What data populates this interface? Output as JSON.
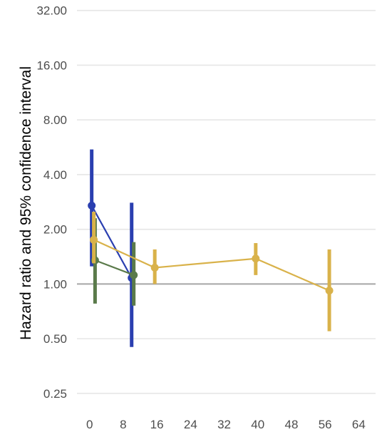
{
  "chart_data": {
    "type": "line",
    "title": "",
    "xlabel": "",
    "ylabel": "Hazard ratio and 95% confidence interval",
    "yscale": "log2",
    "ylim": [
      0.22,
      34
    ],
    "xlim": [
      -3,
      68
    ],
    "y_ticks": [
      "0.25",
      "0.50",
      "1.00",
      "2.00",
      "4.00",
      "8.00",
      "16.00",
      "32.00"
    ],
    "y_tick_values": [
      0.25,
      0.5,
      1,
      2,
      4,
      8,
      16,
      32
    ],
    "x_ticks": [
      "0",
      "8",
      "16",
      "24",
      "32",
      "40",
      "48",
      "56",
      "64"
    ],
    "x_tick_values": [
      0,
      8,
      16,
      24,
      32,
      40,
      48,
      56,
      64
    ],
    "reference_line": 1.0,
    "grid": true,
    "legend": "none",
    "series": [
      {
        "color": "#2a3fb0",
        "points": [
          {
            "x": 0.5,
            "y": 2.7,
            "lo": 1.25,
            "hi": 5.5
          },
          {
            "x": 10.0,
            "y": 1.08,
            "lo": 0.45,
            "hi": 2.8
          }
        ]
      },
      {
        "color": "#5a7a4a",
        "points": [
          {
            "x": 1.3,
            "y": 1.35,
            "lo": 0.78,
            "hi": 2.3
          },
          {
            "x": 10.5,
            "y": 1.12,
            "lo": 0.76,
            "hi": 1.7
          }
        ]
      },
      {
        "color": "#d9b24a",
        "points": [
          {
            "x": 1.0,
            "y": 1.75,
            "lo": 1.3,
            "hi": 2.5
          },
          {
            "x": 15.5,
            "y": 1.23,
            "lo": 1.0,
            "hi": 1.55
          },
          {
            "x": 39.5,
            "y": 1.38,
            "lo": 1.12,
            "hi": 1.68
          },
          {
            "x": 57.0,
            "y": 0.92,
            "lo": 0.55,
            "hi": 1.55
          }
        ]
      }
    ]
  }
}
